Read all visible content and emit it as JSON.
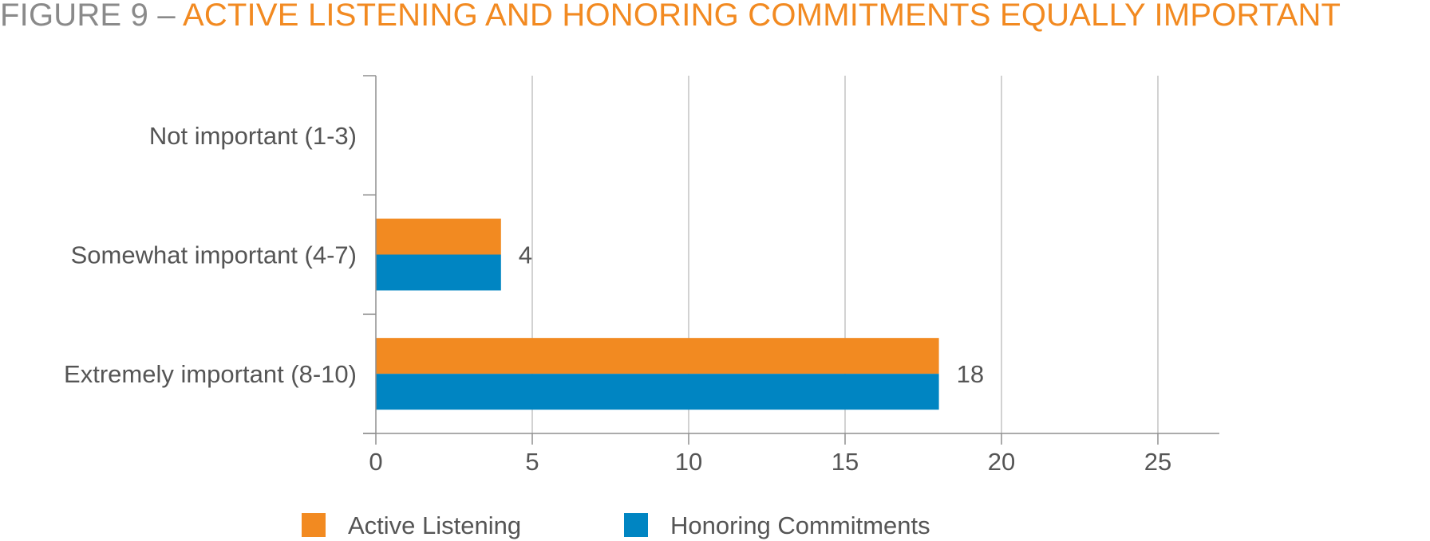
{
  "title": {
    "prefix": "FIGURE 9 – ",
    "main": "ACTIVE LISTENING AND HONORING COMMITMENTS EQUALLY IMPORTANT"
  },
  "colors": {
    "title_prefix": "#8a8a8a",
    "title_main": "#f28a21",
    "active_listening": "#f28a21",
    "honoring_commitments": "#0085c2",
    "grid": "#c4c4c4",
    "axis": "#8f8f8f",
    "label_text": "#555555"
  },
  "chart_data": {
    "type": "bar",
    "orientation": "horizontal",
    "categories": [
      "Not important (1-3)",
      "Somewhat important (4-7)",
      "Extremely important (8-10)"
    ],
    "series": [
      {
        "name": "Active Listening",
        "values": [
          0,
          4,
          18
        ]
      },
      {
        "name": "Honoring Commitments",
        "values": [
          0,
          4,
          18
        ]
      }
    ],
    "data_labels": [
      "",
      "4",
      "18"
    ],
    "xlim": [
      0,
      27
    ],
    "xticks": [
      0,
      5,
      10,
      15,
      20,
      25
    ],
    "grid": true,
    "legend_position": "bottom"
  }
}
